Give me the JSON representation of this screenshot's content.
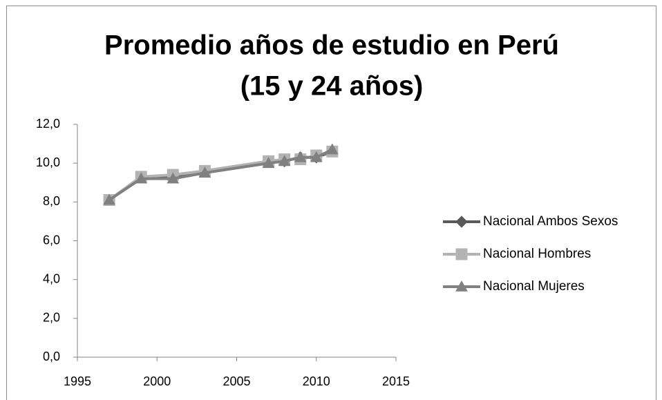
{
  "chart_data": {
    "type": "line",
    "title": [
      "Promedio años de estudio en Perú",
      "(15 y 24 años)"
    ],
    "x": [
      1997,
      1999,
      2001,
      2003,
      2007,
      2008,
      2009,
      2010,
      2011
    ],
    "series": [
      {
        "name": "Nacional Ambos Sexos",
        "color": "#595959",
        "marker": "diamond",
        "values": [
          8.1,
          9.3,
          9.3,
          9.6,
          10.1,
          10.1,
          10.3,
          10.3,
          10.6
        ]
      },
      {
        "name": "Nacional Hombres",
        "color": "#b3b3b3",
        "marker": "square",
        "values": [
          8.1,
          9.3,
          9.4,
          9.6,
          10.1,
          10.2,
          10.2,
          10.4,
          10.6
        ]
      },
      {
        "name": "Nacional Mujeres",
        "color": "#808080",
        "marker": "triangle",
        "values": [
          8.1,
          9.2,
          9.2,
          9.5,
          10.0,
          10.1,
          10.3,
          10.3,
          10.7
        ]
      }
    ],
    "xlim": [
      1995,
      2015
    ],
    "xticks": [
      1995,
      2000,
      2005,
      2010,
      2015
    ],
    "ylim": [
      0,
      12
    ],
    "yticks": [
      {
        "value": 0,
        "label": "0,0"
      },
      {
        "value": 2,
        "label": "2,0"
      },
      {
        "value": 4,
        "label": "4,0"
      },
      {
        "value": 6,
        "label": "6,0"
      },
      {
        "value": 8,
        "label": "8,0"
      },
      {
        "value": 10,
        "label": "10,0"
      },
      {
        "value": 12,
        "label": "12,0"
      }
    ],
    "grid": false,
    "legend": "right"
  }
}
